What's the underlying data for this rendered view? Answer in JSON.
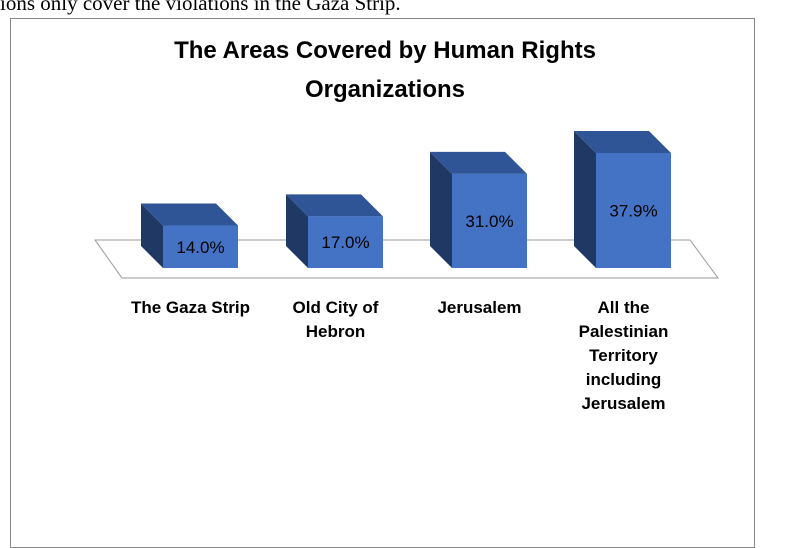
{
  "document_text": "ions only cover the violations in the Gaza Strip.",
  "chart_data": {
    "type": "bar3d",
    "title": [
      "The Areas Covered by Human Rights",
      "Organizations"
    ],
    "categories": [
      "The Gaza Strip",
      "Old City of Hebron",
      "Jerusalem",
      "All the Palestinian Territory including Jerusalem"
    ],
    "values": [
      14.0,
      17.0,
      31.0,
      37.9
    ],
    "value_labels": [
      "14.0%",
      "17.0%",
      "31.0%",
      "37.9%"
    ],
    "color": "#4472c4"
  }
}
